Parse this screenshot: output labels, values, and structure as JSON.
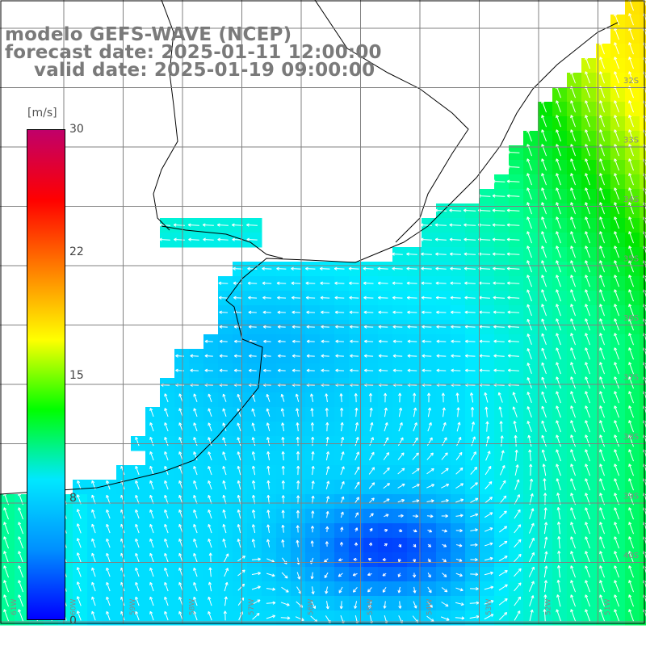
{
  "header": {
    "model": "modelo GEFS-WAVE (NCEP)",
    "forecast": "forecast date: 2025-01-11 12:00:00",
    "valid": "valid date: 2025-01-19 09:00:00"
  },
  "colorbar": {
    "unit": "[m/s]",
    "range": [
      0,
      30
    ],
    "ticks": [
      "30",
      "22",
      "15",
      "8",
      "0"
    ],
    "tick_values": [
      30,
      22.5,
      15,
      7.5,
      0
    ],
    "colors": [
      "#0000ff",
      "#0090ff",
      "#00e8ff",
      "#00ff00",
      "#ffff00",
      "#ff8000",
      "#ff0000",
      "#c0006a"
    ]
  },
  "map": {
    "lat_range": [
      "28S",
      "43S"
    ],
    "lon_range": [
      "65W",
      "43W"
    ],
    "lat_labels": [
      "32S",
      "33S",
      "34S",
      "35S",
      "36S",
      "37S",
      "38S",
      "39S",
      "40S"
    ],
    "lon_labels": [
      "61W",
      "60W",
      "59W",
      "58W",
      "57W",
      "56W",
      "55W",
      "54W",
      "53W",
      "52W",
      "51W",
      "50W",
      "49W",
      "48W"
    ],
    "ocean_color": "#1e90ff",
    "land_color": "#ffffff",
    "gridline_color": "#808080",
    "coastline_color": "#000000"
  }
}
